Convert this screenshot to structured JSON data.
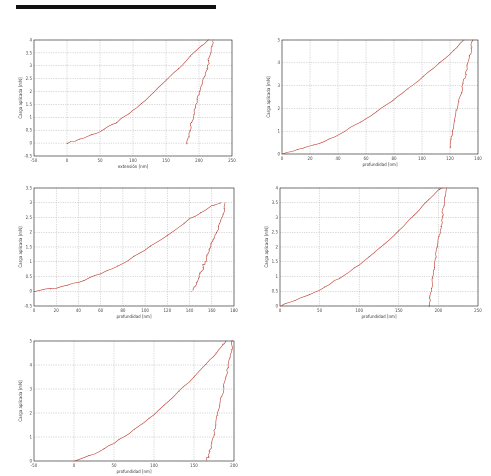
{
  "page": {
    "rule_color": "#111111"
  },
  "chart_data": [
    {
      "type": "line",
      "xlabel": "extensión [nm]",
      "ylabel": "Carga aplicada [mN]",
      "xlim": [
        -50,
        250
      ],
      "ylim": [
        -0.5,
        4
      ],
      "xticks": [
        -50,
        0,
        50,
        100,
        150,
        200,
        250
      ],
      "yticks": [
        -0.5,
        0,
        0.5,
        1,
        1.5,
        2,
        2.5,
        3,
        3.5,
        4
      ],
      "xticklabels": [
        "-50",
        "0",
        "50",
        "100",
        "150",
        "200",
        "250"
      ],
      "yticklabels": [
        "-0.5",
        "0",
        "0.5",
        "1",
        "1.5",
        "2",
        "2.5",
        "3",
        "3.5",
        "4"
      ],
      "grid": true,
      "color": "#c0392b",
      "loading": {
        "x": [
          0,
          25,
          50,
          75,
          100,
          125,
          150,
          175,
          200,
          215
        ],
        "y": [
          0,
          0.2,
          0.45,
          0.8,
          1.25,
          1.8,
          2.45,
          3.05,
          3.7,
          4.0
        ]
      },
      "unloading": {
        "x": [
          222,
          218,
          212,
          205,
          198,
          192,
          186,
          182
        ],
        "y": [
          4.0,
          3.5,
          2.9,
          2.3,
          1.7,
          1.1,
          0.5,
          0.0
        ]
      }
    },
    {
      "type": "line",
      "xlabel": "profundidad [nm]",
      "ylabel": "Carga aplicada [mN]",
      "xlim": [
        0,
        140
      ],
      "ylim": [
        0,
        5
      ],
      "xticks": [
        0,
        20,
        40,
        60,
        80,
        100,
        120,
        140
      ],
      "yticks": [
        0,
        1,
        2,
        3,
        4,
        5
      ],
      "xticklabels": [
        "0",
        "20",
        "40",
        "60",
        "80",
        "100",
        "120",
        "140"
      ],
      "yticklabels": [
        "0",
        "1",
        "2",
        "3",
        "4",
        "5"
      ],
      "grid": true,
      "color": "#c0392b",
      "loading": {
        "x": [
          0,
          15,
          30,
          45,
          60,
          75,
          90,
          105,
          120,
          130
        ],
        "y": [
          0,
          0.25,
          0.55,
          1.0,
          1.55,
          2.15,
          2.85,
          3.6,
          4.4,
          5.0
        ]
      },
      "unloading": {
        "x": [
          136,
          134,
          131,
          128,
          125,
          122,
          120
        ],
        "y": [
          5.0,
          4.3,
          3.5,
          2.7,
          1.9,
          1.0,
          0.3
        ]
      }
    },
    {
      "type": "line",
      "xlabel": "profundidad [nm]",
      "ylabel": "Carga aplicada [mN]",
      "xlim": [
        0,
        180
      ],
      "ylim": [
        -0.5,
        3.5
      ],
      "xticks": [
        0,
        20,
        40,
        60,
        80,
        100,
        120,
        140,
        160,
        180
      ],
      "yticks": [
        -0.5,
        0,
        0.5,
        1,
        1.5,
        2,
        2.5,
        3,
        3.5
      ],
      "xticklabels": [
        "0",
        "20",
        "40",
        "60",
        "80",
        "100",
        "120",
        "140",
        "160",
        "180"
      ],
      "yticklabels": [
        "-0.5",
        "0",
        "0.5",
        "1",
        "1.5",
        "2",
        "2.5",
        "3",
        "3.5"
      ],
      "grid": true,
      "color": "#c0392b",
      "loading": {
        "x": [
          0,
          20,
          40,
          60,
          80,
          100,
          120,
          140,
          160,
          168
        ],
        "y": [
          0,
          0.1,
          0.3,
          0.6,
          0.95,
          1.4,
          1.9,
          2.45,
          2.9,
          3.0
        ]
      },
      "unloading": {
        "x": [
          172,
          170,
          166,
          162,
          158,
          154,
          150,
          146,
          142
        ],
        "y": [
          3.0,
          2.6,
          2.2,
          1.8,
          1.4,
          1.0,
          0.6,
          0.3,
          0.0
        ]
      }
    },
    {
      "type": "line",
      "xlabel": "profundidad [nm]",
      "ylabel": "Carga aplicada [mN]",
      "xlim": [
        0,
        250
      ],
      "ylim": [
        0,
        4
      ],
      "xticks": [
        0,
        50,
        100,
        150,
        200,
        250
      ],
      "yticks": [
        0,
        0.5,
        1,
        1.5,
        2,
        2.5,
        3,
        3.5,
        4
      ],
      "xticklabels": [
        "0",
        "50",
        "100",
        "150",
        "200",
        "250"
      ],
      "yticklabels": [
        "0",
        "0.5",
        "1",
        "1.5",
        "2",
        "2.5",
        "3",
        "3.5",
        "4"
      ],
      "grid": true,
      "color": "#c0392b",
      "loading": {
        "x": [
          0,
          25,
          50,
          75,
          100,
          125,
          150,
          175,
          200,
          205
        ],
        "y": [
          0,
          0.25,
          0.55,
          0.95,
          1.4,
          1.95,
          2.55,
          3.25,
          3.95,
          4.0
        ]
      },
      "unloading": {
        "x": [
          210,
          207,
          203,
          199,
          195,
          191,
          188
        ],
        "y": [
          4.0,
          3.4,
          2.7,
          2.0,
          1.3,
          0.6,
          0.0
        ]
      }
    },
    {
      "type": "line",
      "xlabel": "profundidad [nm]",
      "ylabel": "Carga aplicada [mN]",
      "xlim": [
        -50,
        200
      ],
      "ylim": [
        0,
        5
      ],
      "xticks": [
        -50,
        0,
        50,
        100,
        150,
        200
      ],
      "yticks": [
        0,
        1,
        2,
        3,
        4,
        5
      ],
      "xticklabels": [
        "-50",
        "0",
        "50",
        "100",
        "150",
        "200"
      ],
      "yticklabels": [
        "0",
        "1",
        "2",
        "3",
        "4",
        "5"
      ],
      "grid": true,
      "color": "#c0392b",
      "loading": {
        "x": [
          0,
          25,
          50,
          75,
          100,
          125,
          150,
          170,
          185,
          190
        ],
        "y": [
          0,
          0.3,
          0.75,
          1.3,
          1.95,
          2.7,
          3.5,
          4.2,
          4.8,
          5.0
        ]
      },
      "unloading": {
        "x": [
          198,
          195,
          190,
          185,
          180,
          175,
          170,
          166
        ],
        "y": [
          5.0,
          4.3,
          3.5,
          2.7,
          1.9,
          1.1,
          0.4,
          0.0
        ]
      }
    }
  ]
}
